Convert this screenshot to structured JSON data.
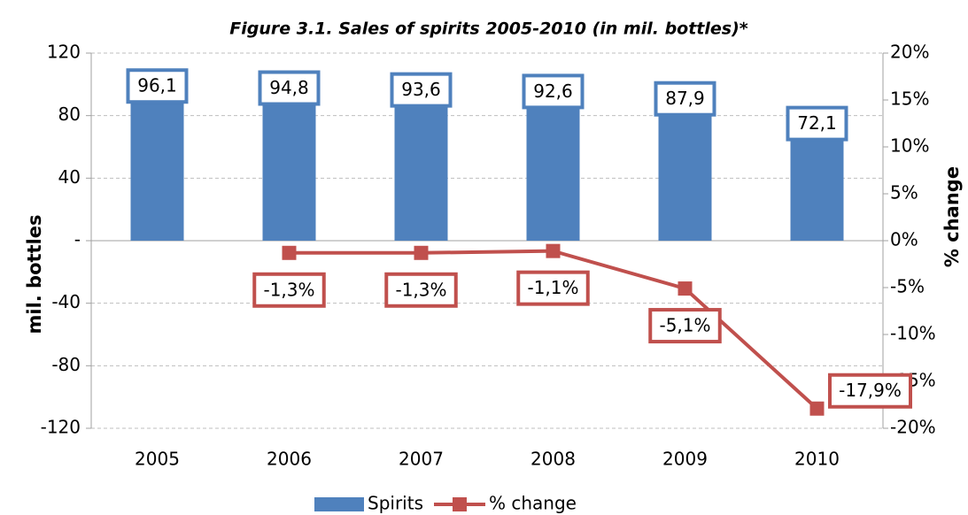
{
  "chart_data": {
    "type": "bar",
    "title": "Figure 3.1. Sales of spirits 2005-2010 (in mil. bottles)*",
    "y_label": "mil. bottles",
    "y2_label": "% change",
    "categories": [
      "2005",
      "2006",
      "2007",
      "2008",
      "2009",
      "2010"
    ],
    "series": [
      {
        "name": "Spirits",
        "type": "bar",
        "color": "#4f81bd",
        "values": [
          96.1,
          94.8,
          93.6,
          92.6,
          87.9,
          72.1
        ],
        "value_labels": [
          "96,1",
          "94,8",
          "93,6",
          "92,6",
          "87,9",
          "72,1"
        ]
      },
      {
        "name": "% change",
        "type": "line",
        "axis": "y2",
        "color": "#c0504d",
        "values": [
          null,
          -1.3,
          -1.3,
          -1.1,
          -5.1,
          -17.9
        ],
        "value_labels": [
          null,
          "-1,3%",
          "-1,3%",
          "-1,1%",
          "-5,1%",
          "-17,9%"
        ]
      }
    ],
    "ylim": [
      -120,
      120
    ],
    "yticks": [
      -120,
      -80,
      -40,
      {
        "value": 0,
        "label": "-"
      },
      40,
      80,
      120
    ],
    "y2lim": [
      -20,
      20
    ],
    "y2ticks": [
      {
        "value": -20,
        "label": "-20%"
      },
      {
        "value": -15,
        "label": "-15%"
      },
      {
        "value": -10,
        "label": "-10%"
      },
      {
        "value": -5,
        "label": "-5%"
      },
      {
        "value": 0,
        "label": "0%"
      },
      {
        "value": 5,
        "label": "5%"
      },
      {
        "value": 10,
        "label": "10%"
      },
      {
        "value": 15,
        "label": "15%"
      },
      {
        "value": 20,
        "label": "20%"
      }
    ],
    "grid": true,
    "legend": "bottom"
  }
}
